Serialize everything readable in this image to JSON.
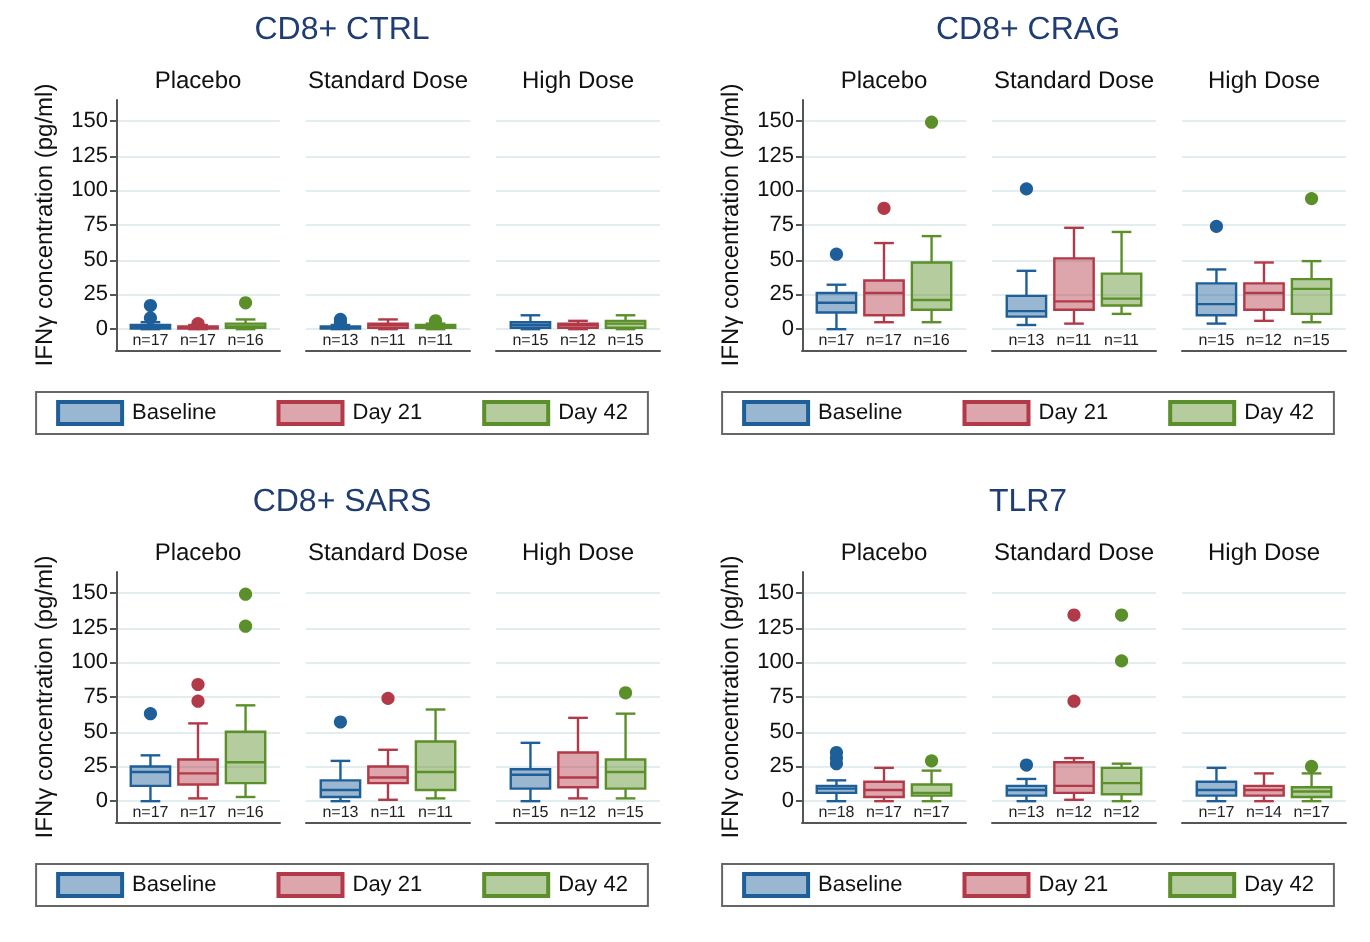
{
  "chart_data": [
    {
      "type": "box",
      "title": "CD8+ CTRL",
      "ylabel": "IFNγ concentration (pg/ml)",
      "categories": [
        "Placebo",
        "Standard Dose",
        "High Dose"
      ],
      "ylim": [
        -15,
        165
      ],
      "yticks": [
        0,
        25,
        50,
        75,
        100,
        125,
        150
      ],
      "grid": "y",
      "legend": "bottom",
      "annotations": [
        "n=17",
        "n=17",
        "n=16",
        "n=13",
        "n=11",
        "n=11",
        "n=15",
        "n=12",
        "n=15"
      ],
      "series": [
        {
          "name": "Baseline",
          "color": "#1f5f99",
          "boxes": [
            {
              "low": 0,
              "q1": 0.5,
              "median": 1.5,
              "q3": 3,
              "high": 5,
              "outliers": [
                8,
                17
              ]
            },
            {
              "low": 0,
              "q1": 0.5,
              "median": 1,
              "q3": 2,
              "high": 3,
              "outliers": [
                5,
                7
              ]
            },
            {
              "low": 0,
              "q1": 1,
              "median": 3,
              "q3": 5,
              "high": 10
            }
          ]
        },
        {
          "name": "Day 21",
          "color": "#b23a48",
          "boxes": [
            {
              "low": 0,
              "q1": 0.5,
              "median": 1,
              "q3": 2,
              "high": 3,
              "outliers": [
                4
              ]
            },
            {
              "low": 0,
              "q1": 1,
              "median": 3,
              "q3": 4,
              "high": 7
            },
            {
              "low": 0,
              "q1": 1,
              "median": 3,
              "q3": 4,
              "high": 6
            }
          ]
        },
        {
          "name": "Day 42",
          "color": "#5b8f29",
          "boxes": [
            {
              "low": 0,
              "q1": 1,
              "median": 2,
              "q3": 4,
              "high": 7,
              "outliers": [
                19
              ]
            },
            {
              "low": 0,
              "q1": 1,
              "median": 2,
              "q3": 3,
              "high": 4,
              "outliers": [
                5,
                6
              ]
            },
            {
              "low": 0,
              "q1": 1,
              "median": 4,
              "q3": 6,
              "high": 10
            }
          ]
        }
      ]
    },
    {
      "type": "box",
      "title": "CD8+ CRAG",
      "ylabel": "IFNγ concentration (pg/ml)",
      "categories": [
        "Placebo",
        "Standard Dose",
        "High Dose"
      ],
      "ylim": [
        -15,
        165
      ],
      "yticks": [
        0,
        25,
        50,
        75,
        100,
        125,
        150
      ],
      "grid": "y",
      "legend": "bottom",
      "annotations": [
        "n=17",
        "n=17",
        "n=16",
        "n=13",
        "n=11",
        "n=11",
        "n=15",
        "n=12",
        "n=15"
      ],
      "series": [
        {
          "name": "Baseline",
          "color": "#1f5f99",
          "boxes": [
            {
              "low": 0,
              "q1": 12,
              "median": 19,
              "q3": 26,
              "high": 32,
              "outliers": [
                54
              ]
            },
            {
              "low": 3,
              "q1": 9,
              "median": 13,
              "q3": 24,
              "high": 42,
              "outliers": [
                101
              ]
            },
            {
              "low": 4,
              "q1": 10,
              "median": 18,
              "q3": 33,
              "high": 43,
              "outliers": [
                74
              ]
            }
          ]
        },
        {
          "name": "Day 21",
          "color": "#b23a48",
          "boxes": [
            {
              "low": 5,
              "q1": 10,
              "median": 26,
              "q3": 35,
              "high": 62,
              "outliers": [
                87
              ]
            },
            {
              "low": 4,
              "q1": 14,
              "median": 20,
              "q3": 51,
              "high": 73
            },
            {
              "low": 6,
              "q1": 14,
              "median": 26,
              "q3": 33,
              "high": 48
            }
          ]
        },
        {
          "name": "Day 42",
          "color": "#5b8f29",
          "boxes": [
            {
              "low": 5,
              "q1": 14,
              "median": 21,
              "q3": 48,
              "high": 67,
              "outliers": [
                149
              ]
            },
            {
              "low": 11,
              "q1": 17,
              "median": 22,
              "q3": 40,
              "high": 70
            },
            {
              "low": 5,
              "q1": 11,
              "median": 29,
              "q3": 36,
              "high": 49,
              "outliers": [
                94
              ]
            }
          ]
        }
      ]
    },
    {
      "type": "box",
      "title": "CD8+ SARS",
      "ylabel": "IFNγ concentration (pg/ml)",
      "categories": [
        "Placebo",
        "Standard Dose",
        "High Dose"
      ],
      "ylim": [
        -15,
        165
      ],
      "yticks": [
        0,
        25,
        50,
        75,
        100,
        125,
        150
      ],
      "grid": "y",
      "legend": "bottom",
      "annotations": [
        "n=17",
        "n=17",
        "n=16",
        "n=13",
        "n=11",
        "n=11",
        "n=15",
        "n=12",
        "n=15"
      ],
      "series": [
        {
          "name": "Baseline",
          "color": "#1f5f99",
          "boxes": [
            {
              "low": 0,
              "q1": 11,
              "median": 21,
              "q3": 25,
              "high": 33,
              "outliers": [
                63
              ]
            },
            {
              "low": 0,
              "q1": 3,
              "median": 8,
              "q3": 15,
              "high": 29,
              "outliers": [
                57
              ]
            },
            {
              "low": 0,
              "q1": 9,
              "median": 19,
              "q3": 23,
              "high": 42
            }
          ]
        },
        {
          "name": "Day 21",
          "color": "#b23a48",
          "boxes": [
            {
              "low": 2,
              "q1": 12,
              "median": 20,
              "q3": 30,
              "high": 56,
              "outliers": [
                72,
                84
              ]
            },
            {
              "low": 1,
              "q1": 13,
              "median": 17,
              "q3": 25,
              "high": 37,
              "outliers": [
                74
              ]
            },
            {
              "low": 2,
              "q1": 10,
              "median": 17,
              "q3": 35,
              "high": 60
            }
          ]
        },
        {
          "name": "Day 42",
          "color": "#5b8f29",
          "boxes": [
            {
              "low": 3,
              "q1": 13,
              "median": 28,
              "q3": 50,
              "high": 69,
              "outliers": [
                126,
                149
              ]
            },
            {
              "low": 2,
              "q1": 8,
              "median": 21,
              "q3": 43,
              "high": 66
            },
            {
              "low": 2,
              "q1": 9,
              "median": 21,
              "q3": 30,
              "high": 63,
              "outliers": [
                78
              ]
            }
          ]
        }
      ]
    },
    {
      "type": "box",
      "title": "TLR7",
      "ylabel": "IFNγ concentration (pg/ml)",
      "categories": [
        "Placebo",
        "Standard Dose",
        "High Dose"
      ],
      "ylim": [
        -15,
        165
      ],
      "yticks": [
        0,
        25,
        50,
        75,
        100,
        125,
        150
      ],
      "grid": "y",
      "legend": "bottom",
      "annotations": [
        "n=18",
        "n=17",
        "n=17",
        "n=13",
        "n=12",
        "n=12",
        "n=17",
        "n=14",
        "n=17"
      ],
      "series": [
        {
          "name": "Baseline",
          "color": "#1f5f99",
          "boxes": [
            {
              "low": 0,
              "q1": 6,
              "median": 9,
              "q3": 11,
              "high": 15,
              "outliers": [
                27,
                31,
                35
              ]
            },
            {
              "low": 0,
              "q1": 4,
              "median": 8,
              "q3": 11,
              "high": 16,
              "outliers": [
                26
              ]
            },
            {
              "low": 0,
              "q1": 4,
              "median": 8,
              "q3": 14,
              "high": 24
            }
          ]
        },
        {
          "name": "Day 21",
          "color": "#b23a48",
          "boxes": [
            {
              "low": 0,
              "q1": 3,
              "median": 8,
              "q3": 14,
              "high": 24
            },
            {
              "low": 1,
              "q1": 6,
              "median": 11,
              "q3": 28,
              "high": 31,
              "outliers": [
                72,
                134
              ]
            },
            {
              "low": 0,
              "q1": 4,
              "median": 8,
              "q3": 11,
              "high": 20
            }
          ]
        },
        {
          "name": "Day 42",
          "color": "#5b8f29",
          "boxes": [
            {
              "low": 0,
              "q1": 4,
              "median": 6,
              "q3": 12,
              "high": 22,
              "outliers": [
                29
              ]
            },
            {
              "low": 0,
              "q1": 5,
              "median": 13,
              "q3": 24,
              "high": 27,
              "outliers": [
                101,
                134
              ]
            },
            {
              "low": 0,
              "q1": 3,
              "median": 7,
              "q3": 10,
              "high": 20,
              "outliers": [
                25
              ]
            }
          ]
        }
      ]
    }
  ]
}
